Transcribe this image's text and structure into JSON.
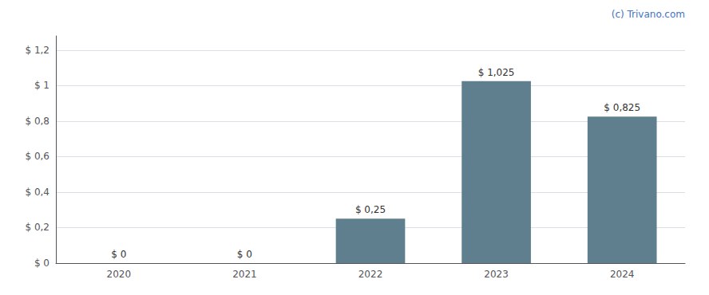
{
  "chart_data": {
    "type": "bar",
    "categories": [
      "2020",
      "2021",
      "2022",
      "2023",
      "2024"
    ],
    "values": [
      0,
      0,
      0.25,
      1.025,
      0.825
    ],
    "value_labels": [
      "$ 0",
      "$ 0",
      "$ 0,25",
      "$ 1,025",
      "$ 0,825"
    ],
    "data_labels": true,
    "color": "#5f7f8e",
    "ylim": [
      0,
      1.28
    ],
    "yticks": [
      {
        "value": 0,
        "label": "$ 0"
      },
      {
        "value": 0.2,
        "label": "$ 0,2"
      },
      {
        "value": 0.4,
        "label": "$ 0,4"
      },
      {
        "value": 0.6,
        "label": "$ 0,6"
      },
      {
        "value": 0.8,
        "label": "$ 0,8"
      },
      {
        "value": 1.0,
        "label": "$ 1"
      },
      {
        "value": 1.2,
        "label": "$ 1,2"
      }
    ],
    "grid": true,
    "annotations": [
      "(c) Trivano.com"
    ]
  }
}
